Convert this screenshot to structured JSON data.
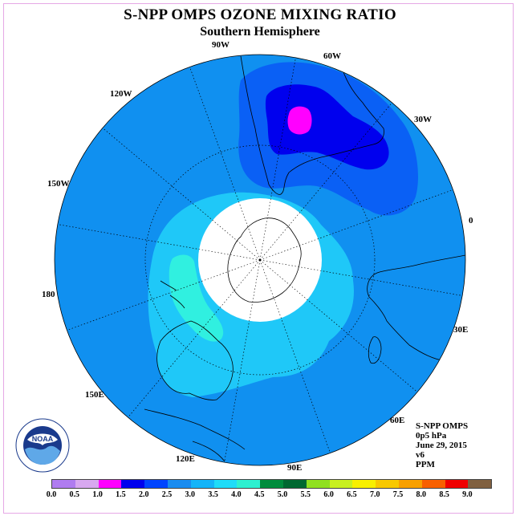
{
  "header": {
    "title": "S-NPP OMPS OZONE MIXING RATIO",
    "subtitle": "Southern Hemisphere"
  },
  "map": {
    "projection": "south-polar-stereographic",
    "longitude_labels": [
      "0",
      "30W",
      "60W",
      "90W",
      "120W",
      "150W",
      "180",
      "150E",
      "120E",
      "90E",
      "60E",
      "30E"
    ],
    "ozone_regions": [
      {
        "level": "2.0-2.5",
        "color": "#0033ff",
        "area": "over South America / South Atlantic"
      },
      {
        "level": "1.0-1.5",
        "color": "#ff00ff",
        "area": "small core near southern South America"
      },
      {
        "level": "2.5-3.0",
        "color": "#1090f0",
        "area": "background ring"
      },
      {
        "level": "3.0-3.5",
        "color": "#1fc8f8",
        "area": "Indian Ocean / Australia sector"
      },
      {
        "level": "3.5-4.0",
        "color": "#30f0e0",
        "area": "near Australia / Indian Ocean"
      }
    ],
    "polar_mask_color": "#ffffff"
  },
  "logo": {
    "name": "NOAA",
    "ring_text": "NATIONAL OCEANIC AND ATMOSPHERIC ADMINISTRATION · U.S. DEPARTMENT OF COMMERCE"
  },
  "info": {
    "instrument": "S-NPP OMPS",
    "pressure": "0p5 hPa",
    "date": "June 29, 2015",
    "version": "v6",
    "units": "PPM"
  },
  "colorbar": {
    "labels": [
      "0.0",
      "0.5",
      "1.0",
      "1.5",
      "2.0",
      "2.5",
      "3.0",
      "3.5",
      "4.0",
      "4.5",
      "5.0",
      "5.5",
      "6.0",
      "6.5",
      "7.0",
      "7.5",
      "8.0",
      "8.5",
      "9.0"
    ],
    "colors": [
      "#b07cf0",
      "#d8a8f0",
      "#ff00ff",
      "#0000ee",
      "#0044ff",
      "#1a8cf0",
      "#14b4f8",
      "#1fdcf8",
      "#2ef0d0",
      "#008c3c",
      "#006830",
      "#90e020",
      "#c8f020",
      "#f8f000",
      "#f8c800",
      "#f8a000",
      "#f86000",
      "#f00000",
      "#806040"
    ]
  }
}
